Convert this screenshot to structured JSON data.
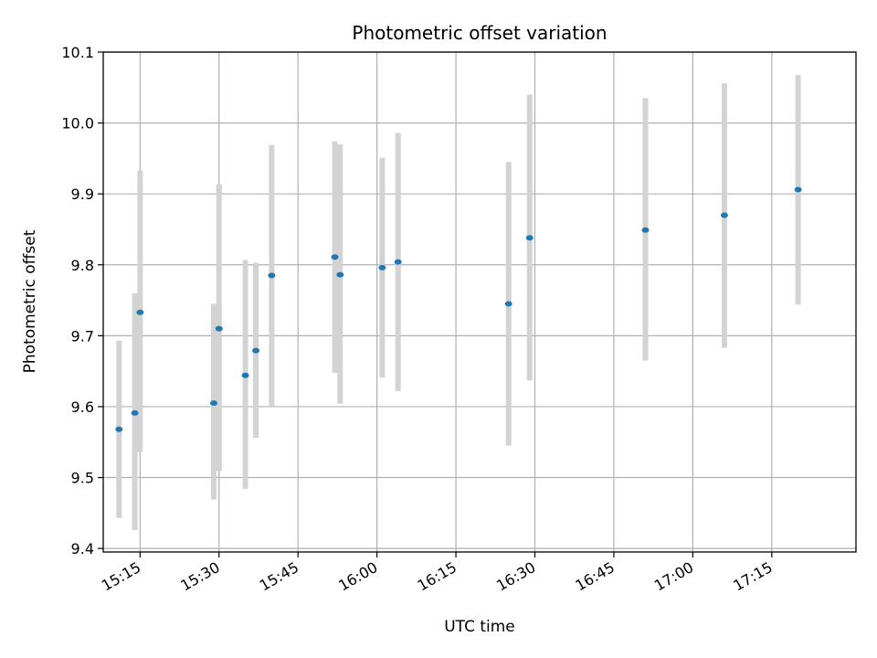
{
  "chart_data": {
    "type": "scatter",
    "title": "Photometric offset variation",
    "xlabel": "UTC time",
    "ylabel": "Photometric offset",
    "x_unit": "UTC time (HH:MM)",
    "xlim": [
      "15:08",
      "17:31"
    ],
    "ylim": [
      9.395,
      10.1
    ],
    "xticks": [
      "15:15",
      "15:30",
      "15:45",
      "16:00",
      "16:15",
      "16:30",
      "16:45",
      "17:00",
      "17:15"
    ],
    "yticks": [
      "9.4",
      "9.5",
      "9.6",
      "9.7",
      "9.8",
      "9.9",
      "10.0",
      "10.1"
    ],
    "grid": true,
    "errorbar_color": "#d3d3d3",
    "point_color": "#1f77b4",
    "points": [
      {
        "x": "15:11",
        "y": 9.568,
        "ylo": 9.443,
        "yhi": 9.693
      },
      {
        "x": "15:14",
        "y": 9.591,
        "ylo": 9.426,
        "yhi": 9.76
      },
      {
        "x": "15:15",
        "y": 9.733,
        "ylo": 9.536,
        "yhi": 9.933
      },
      {
        "x": "15:29",
        "y": 9.605,
        "ylo": 9.469,
        "yhi": 9.745
      },
      {
        "x": "15:30",
        "y": 9.71,
        "ylo": 9.509,
        "yhi": 9.914
      },
      {
        "x": "15:35",
        "y": 9.644,
        "ylo": 9.484,
        "yhi": 9.807
      },
      {
        "x": "15:37",
        "y": 9.679,
        "ylo": 9.556,
        "yhi": 9.803
      },
      {
        "x": "15:40",
        "y": 9.785,
        "ylo": 9.6,
        "yhi": 9.969
      },
      {
        "x": "15:52",
        "y": 9.811,
        "ylo": 9.648,
        "yhi": 9.974
      },
      {
        "x": "15:53",
        "y": 9.786,
        "ylo": 9.604,
        "yhi": 9.97
      },
      {
        "x": "16:01",
        "y": 9.796,
        "ylo": 9.641,
        "yhi": 9.951
      },
      {
        "x": "16:04",
        "y": 9.804,
        "ylo": 9.622,
        "yhi": 9.986
      },
      {
        "x": "16:25",
        "y": 9.745,
        "ylo": 9.545,
        "yhi": 9.945
      },
      {
        "x": "16:29",
        "y": 9.838,
        "ylo": 9.637,
        "yhi": 10.04
      },
      {
        "x": "16:51",
        "y": 9.849,
        "ylo": 9.665,
        "yhi": 10.035
      },
      {
        "x": "17:06",
        "y": 9.87,
        "ylo": 9.683,
        "yhi": 10.056
      },
      {
        "x": "17:20",
        "y": 9.906,
        "ylo": 9.744,
        "yhi": 10.068
      }
    ]
  }
}
